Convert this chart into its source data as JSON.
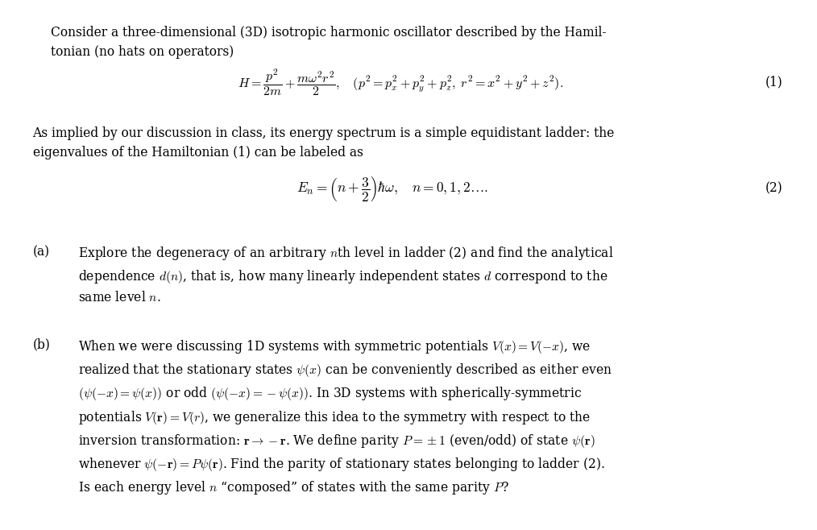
{
  "background_color": "#ffffff",
  "figsize": [
    10.14,
    6.58
  ],
  "dpi": 100,
  "fontsize": 11.2,
  "eq1_fontsize": 11.5,
  "eq2_fontsize": 12.5,
  "para1": "Consider a three-dimensional (3D) isotropic harmonic oscillator described by the Hamil-\ntonian (no hats on operators)",
  "eq1": "$H = \\dfrac{p^2}{2m} + \\dfrac{m\\omega^2 r^2}{2}, \\quad (p^2 = p_x^2 + p_y^2 + p_z^2, \\; r^2 = x^2 + y^2 + z^2).$",
  "label1": "(1)",
  "para2": "As implied by our discussion in class, its energy spectrum is a simple equidistant ladder: the\neigenvalues of the Hamiltonian (1) can be labeled as",
  "eq2": "$E_n = \\left( n + \\dfrac{3}{2} \\right) \\hbar\\omega, \\quad n = 0, 1, 2\\ldots.$",
  "label2": "(2)",
  "label_a": "(a)",
  "text_a": "Explore the degeneracy of an arbitrary $n$th level in ladder (2) and find the analytical\ndependence $d(n)$, that is, how many linearly independent states $d$ correspond to the\nsame level $n$.",
  "label_b": "(b)",
  "text_b": "When we were discussing 1D systems with symmetric potentials $V(x) = V(-x)$, we\nrealized that the stationary states $\\psi(x)$ can be conveniently described as either even\n$(\\psi(-x) = \\psi(x))$ or odd $(\\psi(-x) = -\\psi(x))$. In 3D systems with spherically-symmetric\npotentials $V(\\mathbf{r}) = V(r)$, we generalize this idea to the symmetry with respect to the\ninversion transformation: $\\mathbf{r} \\to -\\mathbf{r}$. We define parity $P = \\pm 1$ (even/odd) of state $\\psi(\\mathbf{r})$\nwhenever $\\psi(-\\mathbf{r}) = P\\psi(\\mathbf{r})$. Find the parity of stationary states belonging to ladder (2).\nIs each energy level $n$ “composed” of states with the same parity $P$?"
}
